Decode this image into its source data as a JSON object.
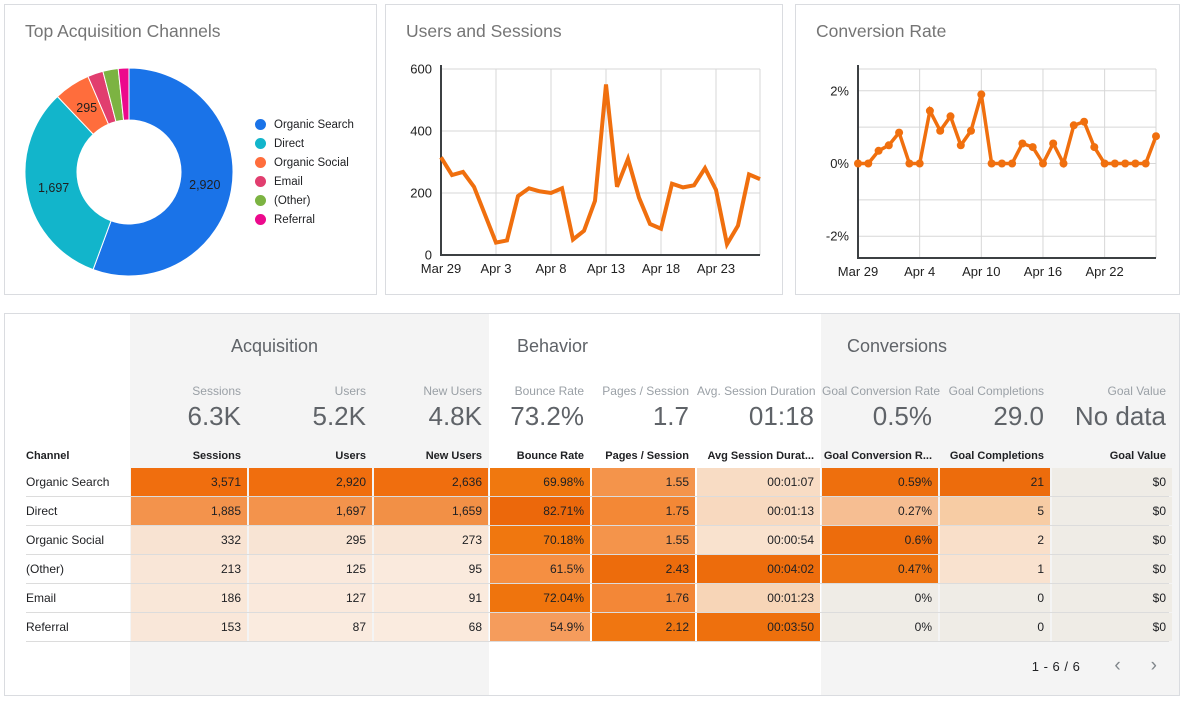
{
  "cards": {
    "donut_card": {
      "title": "Top Acquisition Channels"
    },
    "sessions_card": {
      "title": "Users and Sessions"
    },
    "conversion_card": {
      "title": "Conversion Rate"
    }
  },
  "chart_data": [
    {
      "type": "pie",
      "title": "Top Acquisition Channels",
      "donut": true,
      "labels": [
        "Organic Search",
        "Direct",
        "Organic Social",
        "Email",
        "(Other)",
        "Referral"
      ],
      "values": [
        2920,
        1697,
        295,
        127,
        125,
        87
      ],
      "colors": [
        "#1A73E8",
        "#12B5CB",
        "#FF6D3C",
        "#E13E6F",
        "#7CB342",
        "#EC098C"
      ],
      "data_labels": [
        "2,920",
        "1,697",
        "295",
        "",
        "",
        ""
      ],
      "legend_position": "right"
    },
    {
      "type": "line",
      "title": "Users and Sessions",
      "series_color": "#F06F0E",
      "x_tick_labels": [
        "Mar 29",
        "Apr 3",
        "Apr 8",
        "Apr 13",
        "Apr 18",
        "Apr 23"
      ],
      "x_tick_index": [
        0,
        5,
        10,
        15,
        20,
        25
      ],
      "values": [
        315,
        258,
        268,
        220,
        130,
        40,
        47,
        190,
        215,
        205,
        200,
        215,
        50,
        78,
        175,
        550,
        220,
        310,
        185,
        100,
        85,
        230,
        218,
        225,
        280,
        210,
        35,
        95,
        260,
        245
      ],
      "ylim": [
        0,
        600
      ],
      "y_ticks": [
        {
          "v": 0,
          "label": "0"
        },
        {
          "v": 200,
          "label": "200"
        },
        {
          "v": 400,
          "label": "400"
        },
        {
          "v": 600,
          "label": "600"
        }
      ],
      "y_grid": [
        200,
        400,
        600
      ],
      "grid": true,
      "points": false
    },
    {
      "type": "line",
      "title": "Conversion Rate",
      "series_color": "#F06F0E",
      "x_tick_labels": [
        "Mar 29",
        "Apr 4",
        "Apr 10",
        "Apr 16",
        "Apr 22"
      ],
      "x_tick_index": [
        0,
        6,
        12,
        18,
        24
      ],
      "values": [
        0,
        0,
        0.35,
        0.5,
        0.85,
        0,
        0,
        1.45,
        0.9,
        1.3,
        0.5,
        0.9,
        1.9,
        0,
        0,
        0,
        0.55,
        0.45,
        0,
        0.55,
        0,
        1.05,
        1.15,
        0.45,
        0,
        0,
        0,
        0,
        0,
        0.75
      ],
      "ylim": [
        -2.6,
        2.6
      ],
      "y_ticks": [
        {
          "v": 2,
          "label": "2%"
        },
        {
          "v": 0,
          "label": "0%"
        },
        {
          "v": -2,
          "label": "-2%"
        }
      ],
      "y_grid": [
        2.6,
        2,
        1,
        0,
        -1,
        -2
      ],
      "grid": true,
      "points": true
    }
  ],
  "table": {
    "groups": [
      {
        "label": "Acquisition"
      },
      {
        "label": "Behavior"
      },
      {
        "label": "Conversions"
      }
    ],
    "scorecards": [
      {
        "label": "Sessions",
        "value": "6.3K"
      },
      {
        "label": "Users",
        "value": "5.2K"
      },
      {
        "label": "New Users",
        "value": "4.8K"
      },
      {
        "label": "Bounce Rate",
        "value": "73.2%"
      },
      {
        "label": "Pages / Session",
        "value": "1.7"
      },
      {
        "label": "Avg. Session Duration",
        "value": "01:18"
      },
      {
        "label": "Goal Conversion Rate",
        "value": "0.5%"
      },
      {
        "label": "Goal Completions",
        "value": "29.0"
      },
      {
        "label": "Goal Value",
        "value": "No data"
      }
    ],
    "columns": [
      "Channel",
      "Sessions",
      "Users",
      "New Users",
      "Bounce Rate",
      "Pages / Session",
      "Avg Session Durat...",
      "Goal Conversion R...",
      "Goal Completions",
      "Goal Value"
    ],
    "rows": [
      {
        "channel": "Organic Search",
        "cells": [
          {
            "t": "3,571",
            "bg": "#F06E0E"
          },
          {
            "t": "2,920",
            "bg": "#F06E0E"
          },
          {
            "t": "2,636",
            "bg": "#F06E0E"
          },
          {
            "t": "69.98%",
            "bg": "#F0780F"
          },
          {
            "t": "1.55",
            "bg": "#F4944B"
          },
          {
            "t": "00:01:07",
            "bg": "#F8DCC4"
          },
          {
            "t": "0.59%",
            "bg": "#EE6F0D"
          },
          {
            "t": "21",
            "bg": "#ED6C0C"
          },
          {
            "t": "$0",
            "bg": "#EFECE6"
          }
        ]
      },
      {
        "channel": "Direct",
        "cells": [
          {
            "t": "1,885",
            "bg": "#F3934C"
          },
          {
            "t": "1,697",
            "bg": "#F3934C"
          },
          {
            "t": "1,659",
            "bg": "#F29046"
          },
          {
            "t": "82.71%",
            "bg": "#EC680B"
          },
          {
            "t": "1.75",
            "bg": "#F38836"
          },
          {
            "t": "00:01:13",
            "bg": "#F8D9BF"
          },
          {
            "t": "0.27%",
            "bg": "#F6BE92"
          },
          {
            "t": "5",
            "bg": "#F7CCA4"
          },
          {
            "t": "$0",
            "bg": "#EFECE6"
          }
        ]
      },
      {
        "channel": "Organic Social",
        "cells": [
          {
            "t": "332",
            "bg": "#F8E3D2"
          },
          {
            "t": "295",
            "bg": "#F8E4D4"
          },
          {
            "t": "273",
            "bg": "#F9E5D5"
          },
          {
            "t": "70.18%",
            "bg": "#F0770F"
          },
          {
            "t": "1.55",
            "bg": "#F4944B"
          },
          {
            "t": "00:00:54",
            "bg": "#F9E2CE"
          },
          {
            "t": "0.6%",
            "bg": "#ED6C0C"
          },
          {
            "t": "2",
            "bg": "#F9DFC9"
          },
          {
            "t": "$0",
            "bg": "#EFECE6"
          }
        ]
      },
      {
        "channel": "(Other)",
        "cells": [
          {
            "t": "213",
            "bg": "#F9E6D7"
          },
          {
            "t": "125",
            "bg": "#FAE9DC"
          },
          {
            "t": "95",
            "bg": "#FAEADD"
          },
          {
            "t": "61.5%",
            "bg": "#F58F42"
          },
          {
            "t": "2.43",
            "bg": "#ED6C0C"
          },
          {
            "t": "00:04:02",
            "bg": "#ED6C0C"
          },
          {
            "t": "0.47%",
            "bg": "#EF7512"
          },
          {
            "t": "1",
            "bg": "#F9E2CF"
          },
          {
            "t": "$0",
            "bg": "#EFECE6"
          }
        ]
      },
      {
        "channel": "Email",
        "cells": [
          {
            "t": "186",
            "bg": "#F9E7D8"
          },
          {
            "t": "127",
            "bg": "#FAE9DC"
          },
          {
            "t": "91",
            "bg": "#FAEADD"
          },
          {
            "t": "72.04%",
            "bg": "#EF740D"
          },
          {
            "t": "1.76",
            "bg": "#F38737"
          },
          {
            "t": "00:01:23",
            "bg": "#F7D5B7"
          },
          {
            "t": "0%",
            "bg": "#EFECE6"
          },
          {
            "t": "0",
            "bg": "#EFECE6"
          },
          {
            "t": "$0",
            "bg": "#EFECE6"
          }
        ]
      },
      {
        "channel": "Referral",
        "cells": [
          {
            "t": "153",
            "bg": "#F9E7D9"
          },
          {
            "t": "87",
            "bg": "#FAEBDF"
          },
          {
            "t": "68",
            "bg": "#FAEBDF"
          },
          {
            "t": "54.9%",
            "bg": "#F59C5C"
          },
          {
            "t": "2.12",
            "bg": "#F07611"
          },
          {
            "t": "00:03:50",
            "bg": "#EE700D"
          },
          {
            "t": "0%",
            "bg": "#EFECE6"
          },
          {
            "t": "0",
            "bg": "#EFECE6"
          },
          {
            "t": "$0",
            "bg": "#EFECE6"
          }
        ]
      }
    ],
    "pagination": {
      "label": "1 - 6 / 6",
      "prev_icon": "‹",
      "next_icon": "›"
    }
  }
}
